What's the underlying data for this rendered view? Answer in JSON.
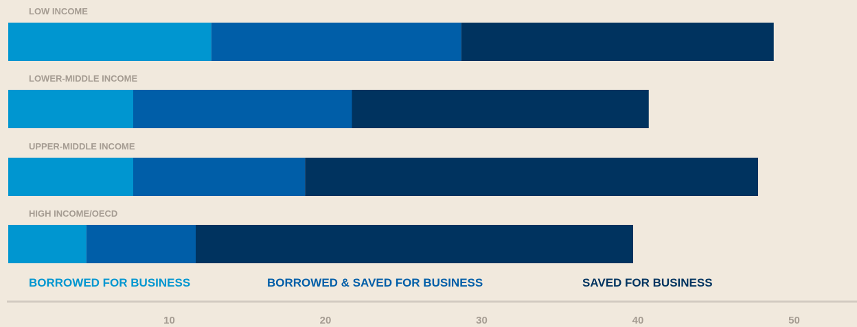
{
  "chart_data": {
    "type": "bar",
    "orientation": "horizontal",
    "stacked": true,
    "categories": [
      "LOW INCOME",
      "LOWER-MIDDLE INCOME",
      "UPPER-MIDDLE INCOME",
      "HIGH INCOME/OECD"
    ],
    "series": [
      {
        "name": "BORROWED FOR BUSINESS",
        "color": "#0096d0",
        "values": [
          13,
          8,
          8,
          5
        ]
      },
      {
        "name": "BORROWED & SAVED FOR BUSINESS",
        "color": "#005ea8",
        "values": [
          16,
          14,
          11,
          7
        ]
      },
      {
        "name": "SAVED FOR BUSINESS",
        "color": "#00335f",
        "values": [
          20,
          19,
          29,
          28
        ]
      }
    ],
    "x_ticks": [
      10,
      20,
      30,
      40,
      50
    ],
    "xlim": [
      0,
      54
    ],
    "grid": false,
    "legend_position": "bottom",
    "title": "",
    "xlabel": "",
    "ylabel": ""
  }
}
